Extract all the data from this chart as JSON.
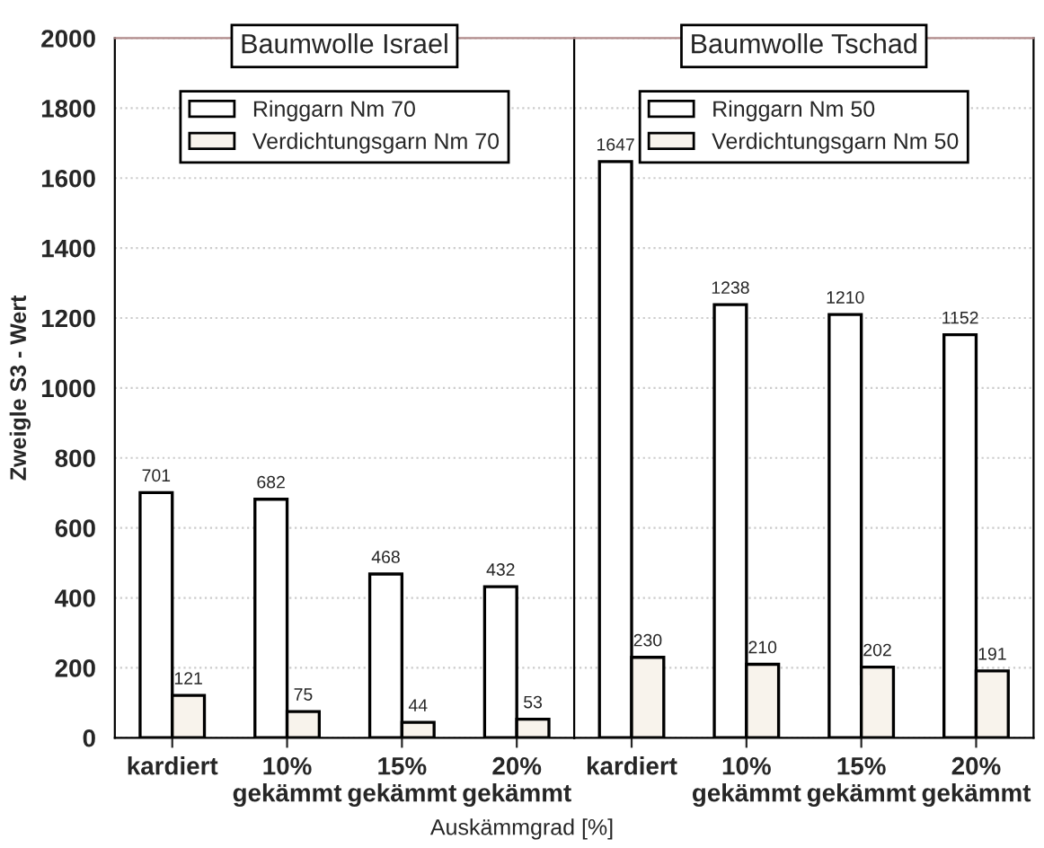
{
  "chart_data": [
    {
      "type": "bar",
      "title": "Baumwolle Israel",
      "ylabel": "Zweigle S3 - Wert",
      "xlabel": "Auskämmgrad [%]",
      "categories": [
        "kardiert",
        "10%\ngekämmt",
        "15%\ngekämmt",
        "20%\ngekämmt"
      ],
      "series": [
        {
          "name": "Ringgarn Nm 70",
          "color": "#ffffff",
          "values": [
            701,
            682,
            468,
            432
          ]
        },
        {
          "name": "Verdichtungsgarn Nm 70",
          "color": "#f8f3ec",
          "values": [
            121,
            75,
            44,
            53
          ]
        }
      ],
      "ylim": [
        0,
        2000
      ],
      "yticks": [
        0,
        200,
        400,
        600,
        800,
        1000,
        1200,
        1400,
        1600,
        1800,
        2000
      ],
      "grid": "y",
      "legend": "top",
      "data_labels": true
    },
    {
      "type": "bar",
      "title": "Baumwolle Tschad",
      "categories": [
        "kardiert",
        "10%\ngekämmt",
        "15%\ngekämmt",
        "20%\ngekämmt"
      ],
      "series": [
        {
          "name": "Ringgarn Nm 50",
          "color": "#ffffff",
          "values": [
            1647,
            1238,
            1210,
            1152
          ]
        },
        {
          "name": "Verdichtungsgarn Nm 50",
          "color": "#f8f3ec",
          "values": [
            230,
            210,
            202,
            191
          ]
        }
      ],
      "ylim": [
        0,
        2000
      ],
      "yticks": [
        0,
        200,
        400,
        600,
        800,
        1000,
        1200,
        1400,
        1600,
        1800,
        2000
      ],
      "tick_labels": "x",
      "grid": "y",
      "legend": "top",
      "data_labels": true
    }
  ]
}
